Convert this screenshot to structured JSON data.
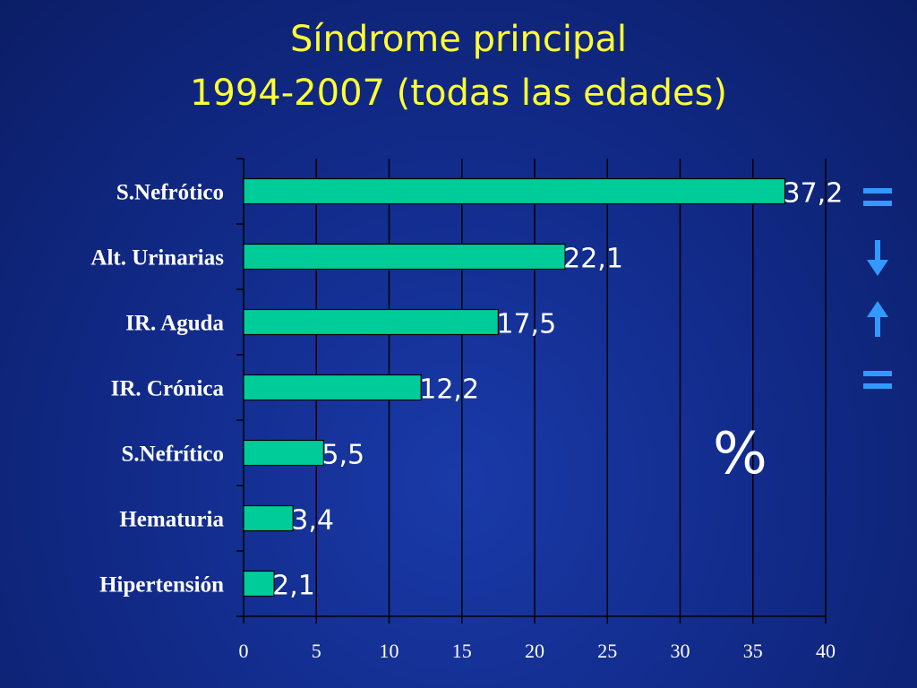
{
  "title": {
    "line1": "Síndrome principal",
    "line2": "1994-2007   (todas las edades)"
  },
  "unit_label": "%",
  "trend_icons": [
    "equal-icon",
    "arrow-down-icon",
    "arrow-up-icon",
    "equal-icon"
  ],
  "colors": {
    "bar": "#00cc99",
    "trend": "#3399ff",
    "title": "#ffff33"
  },
  "chart_data": {
    "type": "bar",
    "orientation": "horizontal",
    "categories": [
      "S.Nefrótico",
      "Alt. Urinarias",
      "IR. Aguda",
      "IR. Crónica",
      "S.Nefrítico",
      "Hematuria",
      "Hipertensión"
    ],
    "values": [
      37.2,
      22.1,
      17.5,
      12.2,
      5.5,
      3.4,
      2.1
    ],
    "value_labels": [
      "37,2",
      "22,1",
      "17,5",
      "12,2",
      "5,5",
      "3,4",
      "2,1"
    ],
    "xlim": [
      0,
      40
    ],
    "xticks": [
      0,
      5,
      10,
      15,
      20,
      25,
      30,
      35,
      40
    ],
    "grid": "vertical"
  }
}
